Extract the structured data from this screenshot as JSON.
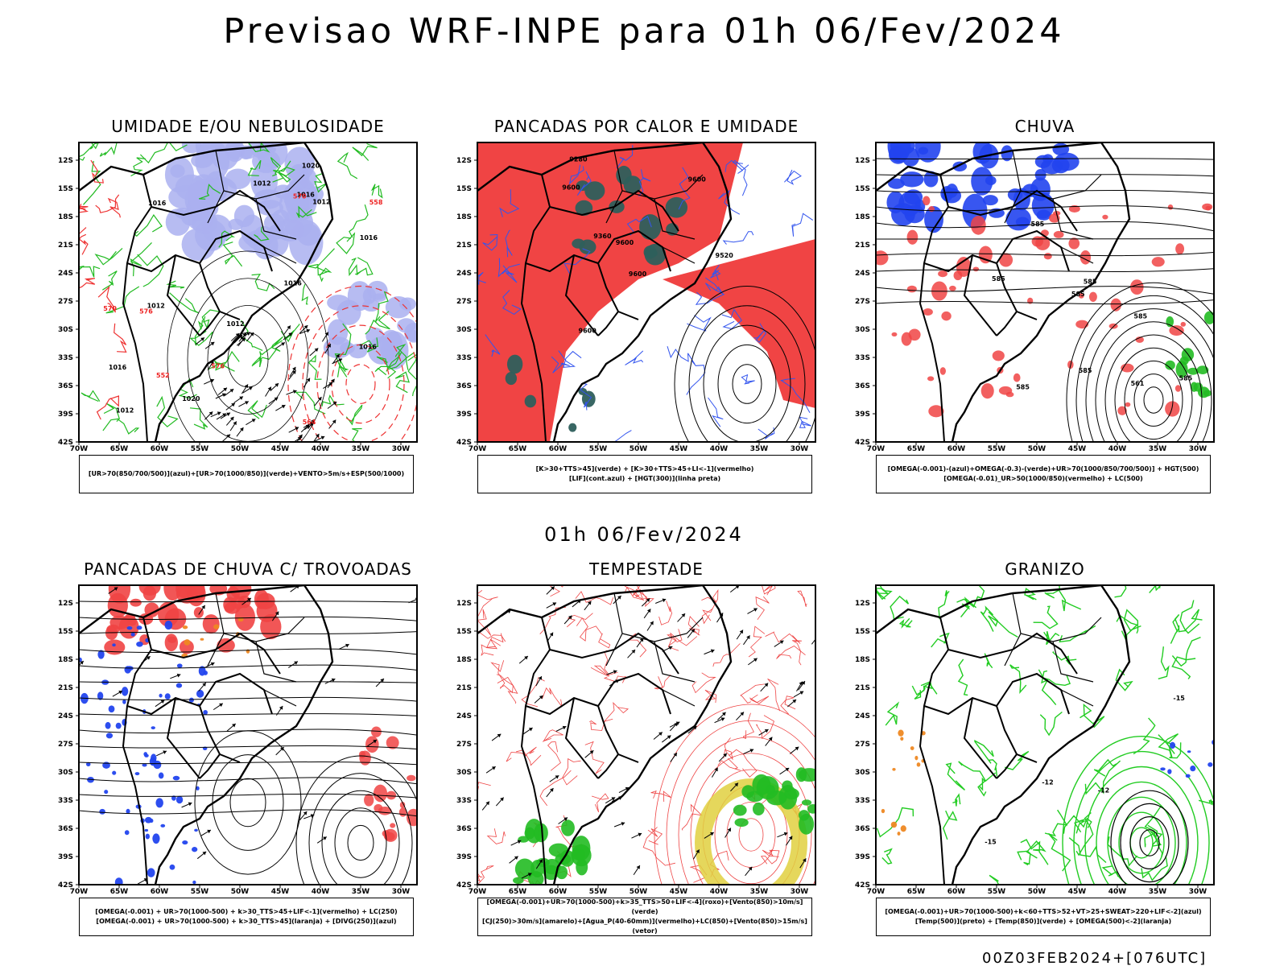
{
  "main_title": "Previsao WRF-INPE  para 01h 06/Fev/2024",
  "mid_title": "01h 06/Fev/2024",
  "footer": "00Z03FEB2024+[076UTC]",
  "lat_ticks": [
    "12S",
    "15S",
    "18S",
    "21S",
    "24S",
    "27S",
    "30S",
    "33S",
    "36S",
    "39S",
    "42S"
  ],
  "lon_ticks": [
    "70W",
    "65W",
    "60W",
    "55W",
    "50W",
    "45W",
    "40W",
    "35W",
    "30W"
  ],
  "panels": [
    {
      "title": "UMIDADE E/OU NEBULOSIDADE",
      "legend": [
        "[UR>70(850/700/500)](azul)+[UR>70(1000/850)](verde)+VENTO>5m/s+ESP(500/1000)"
      ],
      "labels": [
        "1012",
        "1016",
        "1016",
        "1016",
        "1016",
        "1016",
        "1016",
        "1012",
        "1020",
        "1020",
        "1012",
        "1012",
        "1012",
        "570",
        "576",
        "576",
        "570",
        "564",
        "558",
        "552"
      ]
    },
    {
      "title": "PANCADAS POR CALOR E UMIDADE",
      "legend": [
        "[K>30+TTS>45](verde)  +  [K>30+TTS>45+LI<-1](vermelho)",
        "[LIF](cont.azul)  +  [HGT(300)](linha preta)"
      ],
      "labels": [
        "9600",
        "9600",
        "9600",
        "9600",
        "9600",
        "9520",
        "9360",
        "9280"
      ]
    },
    {
      "title": "CHUVA",
      "legend": [
        "[OMEGA(-0.001)-(azul)+OMEGA(-0.3)-(verde)+UR>70(1000/850/700/500)]  +  HGT(500)",
        "[OMEGA(-0.01)_UR>50(1000/850)(vermelho) + LC(500)"
      ],
      "labels": [
        "585",
        "585",
        "585",
        "585",
        "585",
        "585",
        "585",
        "585",
        "561"
      ]
    },
    {
      "title": "PANCADAS DE CHUVA C/ TROVOADAS",
      "legend": [
        "[OMEGA(-0.001) + UR>70(1000-500) + k>30_TTS>45+LIF<-1](vermelho) + LC(250)",
        "[OMEGA(-0.001) + UR>70(1000-500) + k>30_TTS>45](laranja) + [DIVG(250)](azul)"
      ],
      "labels": []
    },
    {
      "title": "TEMPESTADE",
      "legend": [
        "[OMEGA(-0.001)+UR>70(1000-500)+k>35_TTS>50+LIF<-4](roxo)+[Vento(850)>10m/s](verde)",
        "[CJ(250)>30m/s](amarelo)+[Agua_P(40-60mm)](vermelho)+LC(850)+[Vento(850)>15m/s](vetor)"
      ],
      "labels": []
    },
    {
      "title": "GRANIZO",
      "legend": [
        "[OMEGA(-0.001)+UR>70(1000-500)+k<60+TTS>52+VT>25+SWEAT>220+LIF<-2](azul)",
        "[Temp(500)](preto)  +  [Temp(850)](verde)  +  [OMEGA(500)<-2](laranja)"
      ],
      "labels": [
        "-12",
        "-15",
        "-15",
        "-12"
      ]
    }
  ]
}
